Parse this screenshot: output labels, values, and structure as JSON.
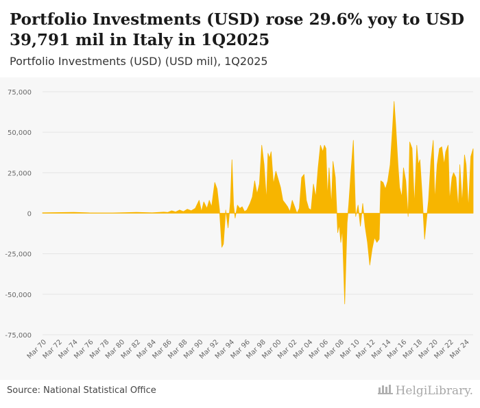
{
  "title": "Portfolio Investments (USD) rose 29.6% yoy to USD 39,791 mil in Italy in 1Q2025",
  "subtitle": "Portfolio Investments (USD) (USD mil), 1Q2025",
  "source": "Source: National Statistical Office",
  "brand": "HelgiLibrary.",
  "colors": {
    "area": "#f7b500",
    "grid": "#e4e4e4",
    "axis_text": "#666666"
  },
  "chart_data": {
    "type": "area",
    "title": "Portfolio Investments (USD) (USD mil)",
    "xlabel": "",
    "ylabel": "",
    "ylim": [
      -75000,
      75000
    ],
    "yticks": [
      75000,
      50000,
      25000,
      0,
      -25000,
      -50000,
      -75000
    ],
    "ytick_labels": [
      "75,000",
      "50,000",
      "25,000",
      "0",
      "-25,000",
      "-50,000",
      "-75,000"
    ],
    "xtick_labels": [
      "Mar 70",
      "Mar 72",
      "Mar 74",
      "Mar 76",
      "Mar 78",
      "Mar 80",
      "Mar 82",
      "Mar 84",
      "Mar 86",
      "Mar 88",
      "Mar 90",
      "Mar 92",
      "Mar 94",
      "Mar 96",
      "Mar 98",
      "Mar 00",
      "Mar 02",
      "Mar 04",
      "Mar 06",
      "Mar 08",
      "Mar 10",
      "Mar 12",
      "Mar 14",
      "Mar 16",
      "Mar 18",
      "Mar 20",
      "Mar 22",
      "Mar 24"
    ],
    "x_start": 1970.0,
    "x_end": 2025.0,
    "series": [
      {
        "name": "Portfolio Investments (USD)",
        "points": [
          [
            1970.0,
            300
          ],
          [
            1974.0,
            600
          ],
          [
            1976.0,
            250
          ],
          [
            1979.0,
            200
          ],
          [
            1982.0,
            600
          ],
          [
            1984.0,
            300
          ],
          [
            1985.5,
            700
          ],
          [
            1986.0,
            500
          ],
          [
            1986.5,
            1500
          ],
          [
            1987.0,
            800
          ],
          [
            1987.5,
            2000
          ],
          [
            1988.0,
            1000
          ],
          [
            1988.5,
            2500
          ],
          [
            1989.0,
            1500
          ],
          [
            1989.5,
            3000
          ],
          [
            1990.0,
            8000
          ],
          [
            1990.3,
            1000
          ],
          [
            1990.6,
            7000
          ],
          [
            1991.0,
            3000
          ],
          [
            1991.3,
            8000
          ],
          [
            1991.6,
            4000
          ],
          [
            1992.0,
            19000
          ],
          [
            1992.3,
            15000
          ],
          [
            1992.6,
            2000
          ],
          [
            1992.9,
            -21000
          ],
          [
            1993.1,
            -19000
          ],
          [
            1993.4,
            2000
          ],
          [
            1993.7,
            -9000
          ],
          [
            1994.0,
            7000
          ],
          [
            1994.2,
            33000
          ],
          [
            1994.4,
            5000
          ],
          [
            1994.6,
            -3000
          ],
          [
            1994.9,
            5000
          ],
          [
            1995.2,
            3000
          ],
          [
            1995.5,
            4000
          ],
          [
            1995.8,
            1000
          ],
          [
            1996.1,
            2000
          ],
          [
            1996.5,
            6000
          ],
          [
            1996.8,
            10000
          ],
          [
            1997.1,
            20000
          ],
          [
            1997.4,
            12000
          ],
          [
            1997.7,
            18000
          ],
          [
            1998.0,
            42000
          ],
          [
            1998.3,
            30000
          ],
          [
            1998.6,
            8000
          ],
          [
            1998.8,
            37000
          ],
          [
            1999.0,
            34000
          ],
          [
            1999.2,
            38000
          ],
          [
            1999.5,
            18000
          ],
          [
            1999.8,
            26000
          ],
          [
            2000.1,
            21000
          ],
          [
            2000.4,
            16000
          ],
          [
            2000.7,
            8000
          ],
          [
            2001.0,
            6000
          ],
          [
            2001.3,
            4000
          ],
          [
            2001.6,
            1000
          ],
          [
            2001.9,
            8000
          ],
          [
            2002.2,
            4000
          ],
          [
            2002.5,
            0
          ],
          [
            2002.8,
            3000
          ],
          [
            2003.1,
            22000
          ],
          [
            2003.4,
            24000
          ],
          [
            2003.7,
            8000
          ],
          [
            2004.0,
            3000
          ],
          [
            2004.3,
            2000
          ],
          [
            2004.6,
            18000
          ],
          [
            2004.9,
            10000
          ],
          [
            2005.2,
            28000
          ],
          [
            2005.5,
            42000
          ],
          [
            2005.8,
            38000
          ],
          [
            2006.0,
            42000
          ],
          [
            2006.2,
            40000
          ],
          [
            2006.4,
            10000
          ],
          [
            2006.6,
            28000
          ],
          [
            2006.9,
            5000
          ],
          [
            2007.1,
            32000
          ],
          [
            2007.4,
            22000
          ],
          [
            2007.7,
            -12000
          ],
          [
            2007.9,
            -7000
          ],
          [
            2008.1,
            -18000
          ],
          [
            2008.3,
            -10000
          ],
          [
            2008.6,
            -56000
          ],
          [
            2008.9,
            -6000
          ],
          [
            2009.1,
            5000
          ],
          [
            2009.4,
            26000
          ],
          [
            2009.7,
            45000
          ],
          [
            2010.0,
            -2000
          ],
          [
            2010.3,
            5000
          ],
          [
            2010.6,
            -8000
          ],
          [
            2010.9,
            6000
          ],
          [
            2011.2,
            -8000
          ],
          [
            2011.5,
            -18000
          ],
          [
            2011.8,
            -32000
          ],
          [
            2012.1,
            -22000
          ],
          [
            2012.4,
            -15000
          ],
          [
            2012.7,
            -18000
          ],
          [
            2013.0,
            -16000
          ],
          [
            2013.2,
            20000
          ],
          [
            2013.5,
            19000
          ],
          [
            2013.8,
            15000
          ],
          [
            2014.1,
            20000
          ],
          [
            2014.4,
            30000
          ],
          [
            2014.7,
            52000
          ],
          [
            2014.9,
            69000
          ],
          [
            2015.1,
            55000
          ],
          [
            2015.4,
            30000
          ],
          [
            2015.6,
            16000
          ],
          [
            2015.9,
            10000
          ],
          [
            2016.1,
            28000
          ],
          [
            2016.4,
            20000
          ],
          [
            2016.7,
            -2000
          ],
          [
            2016.9,
            44000
          ],
          [
            2017.2,
            40000
          ],
          [
            2017.5,
            5000
          ],
          [
            2017.8,
            42000
          ],
          [
            2018.0,
            30000
          ],
          [
            2018.2,
            33000
          ],
          [
            2018.5,
            10000
          ],
          [
            2018.8,
            -16000
          ],
          [
            2019.0,
            -6000
          ],
          [
            2019.3,
            8000
          ],
          [
            2019.6,
            32000
          ],
          [
            2019.9,
            45000
          ],
          [
            2020.1,
            8000
          ],
          [
            2020.4,
            30000
          ],
          [
            2020.7,
            40000
          ],
          [
            2021.0,
            41000
          ],
          [
            2021.3,
            30000
          ],
          [
            2021.5,
            38000
          ],
          [
            2021.8,
            42000
          ],
          [
            2022.0,
            8000
          ],
          [
            2022.3,
            22000
          ],
          [
            2022.5,
            25000
          ],
          [
            2022.8,
            22000
          ],
          [
            2023.1,
            3000
          ],
          [
            2023.3,
            30000
          ],
          [
            2023.6,
            6000
          ],
          [
            2023.9,
            36000
          ],
          [
            2024.1,
            30000
          ],
          [
            2024.4,
            3000
          ],
          [
            2024.7,
            35000
          ],
          [
            2025.0,
            39791
          ]
        ]
      }
    ]
  }
}
